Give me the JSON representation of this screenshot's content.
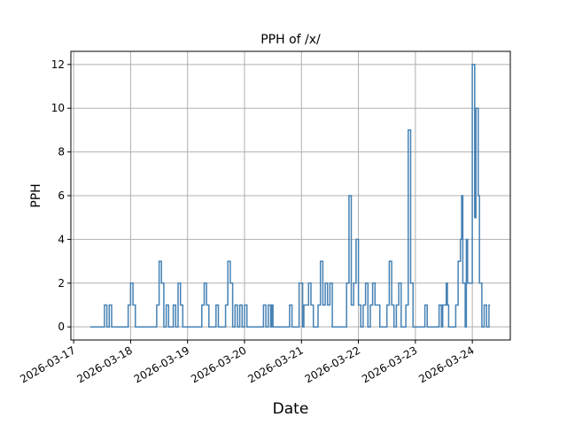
{
  "chart_data": {
    "type": "line",
    "step": "post",
    "title": "PPH of /x/",
    "xlabel": "Date",
    "ylabel": "PPH",
    "xlim": [
      "2026-03-16 22:50",
      "2026-03-24 16:00"
    ],
    "ylim": [
      -0.6,
      12.6
    ],
    "grid": true,
    "line_color": "#4682b4",
    "x_ticks": [
      "2026-03-17",
      "2026-03-18",
      "2026-03-19",
      "2026-03-20",
      "2026-03-21",
      "2026-03-22",
      "2026-03-23",
      "2026-03-24"
    ],
    "y_ticks": [
      0,
      2,
      4,
      6,
      8,
      10,
      12
    ],
    "points": [
      [
        "2026-03-17 07:00",
        0
      ],
      [
        "2026-03-17 13:00",
        1
      ],
      [
        "2026-03-17 14:00",
        0
      ],
      [
        "2026-03-17 15:00",
        1
      ],
      [
        "2026-03-17 16:00",
        0
      ],
      [
        "2026-03-17 23:00",
        1
      ],
      [
        "2026-03-18 00:00",
        2
      ],
      [
        "2026-03-18 01:00",
        1
      ],
      [
        "2026-03-18 02:00",
        0
      ],
      [
        "2026-03-18 11:00",
        1
      ],
      [
        "2026-03-18 12:00",
        3
      ],
      [
        "2026-03-18 13:00",
        2
      ],
      [
        "2026-03-18 14:00",
        0
      ],
      [
        "2026-03-18 15:00",
        1
      ],
      [
        "2026-03-18 16:00",
        0
      ],
      [
        "2026-03-18 18:00",
        1
      ],
      [
        "2026-03-18 19:00",
        0
      ],
      [
        "2026-03-18 20:00",
        2
      ],
      [
        "2026-03-18 21:00",
        1
      ],
      [
        "2026-03-18 22:00",
        0
      ],
      [
        "2026-03-19 06:00",
        1
      ],
      [
        "2026-03-19 07:00",
        2
      ],
      [
        "2026-03-19 08:00",
        1
      ],
      [
        "2026-03-19 09:00",
        0
      ],
      [
        "2026-03-19 12:00",
        1
      ],
      [
        "2026-03-19 13:00",
        0
      ],
      [
        "2026-03-19 16:00",
        1
      ],
      [
        "2026-03-19 17:00",
        3
      ],
      [
        "2026-03-19 18:00",
        2
      ],
      [
        "2026-03-19 19:00",
        0
      ],
      [
        "2026-03-19 20:00",
        1
      ],
      [
        "2026-03-19 21:00",
        0
      ],
      [
        "2026-03-19 22:00",
        1
      ],
      [
        "2026-03-19 23:00",
        0
      ],
      [
        "2026-03-20 00:00",
        1
      ],
      [
        "2026-03-20 01:00",
        0
      ],
      [
        "2026-03-20 08:00",
        1
      ],
      [
        "2026-03-20 09:00",
        0
      ],
      [
        "2026-03-20 10:00",
        1
      ],
      [
        "2026-03-20 11:00",
        0
      ],
      [
        "2026-03-20 11:30",
        1
      ],
      [
        "2026-03-20 12:00",
        0
      ],
      [
        "2026-03-20 19:00",
        1
      ],
      [
        "2026-03-20 20:00",
        0
      ],
      [
        "2026-03-20 23:00",
        2
      ],
      [
        "2026-03-21 00:30",
        0
      ],
      [
        "2026-03-21 01:00",
        1
      ],
      [
        "2026-03-21 03:00",
        2
      ],
      [
        "2026-03-21 04:00",
        1
      ],
      [
        "2026-03-21 05:00",
        0
      ],
      [
        "2026-03-21 07:00",
        1
      ],
      [
        "2026-03-21 08:00",
        3
      ],
      [
        "2026-03-21 09:00",
        1
      ],
      [
        "2026-03-21 10:00",
        2
      ],
      [
        "2026-03-21 11:00",
        1
      ],
      [
        "2026-03-21 12:00",
        2
      ],
      [
        "2026-03-21 13:00",
        0
      ],
      [
        "2026-03-21 19:00",
        2
      ],
      [
        "2026-03-21 20:00",
        6
      ],
      [
        "2026-03-21 21:00",
        1
      ],
      [
        "2026-03-21 22:00",
        2
      ],
      [
        "2026-03-21 23:00",
        4
      ],
      [
        "2026-03-22 00:00",
        1
      ],
      [
        "2026-03-22 01:00",
        0
      ],
      [
        "2026-03-22 02:00",
        1
      ],
      [
        "2026-03-22 03:00",
        2
      ],
      [
        "2026-03-22 04:00",
        0
      ],
      [
        "2026-03-22 05:00",
        1
      ],
      [
        "2026-03-22 06:00",
        2
      ],
      [
        "2026-03-22 07:00",
        1
      ],
      [
        "2026-03-22 09:00",
        0
      ],
      [
        "2026-03-22 12:00",
        1
      ],
      [
        "2026-03-22 13:00",
        3
      ],
      [
        "2026-03-22 14:00",
        1
      ],
      [
        "2026-03-22 15:00",
        0
      ],
      [
        "2026-03-22 16:00",
        1
      ],
      [
        "2026-03-22 17:00",
        2
      ],
      [
        "2026-03-22 18:00",
        0
      ],
      [
        "2026-03-22 20:00",
        1
      ],
      [
        "2026-03-22 21:00",
        9
      ],
      [
        "2026-03-22 22:00",
        2
      ],
      [
        "2026-03-22 23:00",
        0
      ],
      [
        "2026-03-23 04:00",
        1
      ],
      [
        "2026-03-23 05:00",
        0
      ],
      [
        "2026-03-23 10:00",
        1
      ],
      [
        "2026-03-23 11:00",
        0
      ],
      [
        "2026-03-23 11:30",
        1
      ],
      [
        "2026-03-23 13:00",
        2
      ],
      [
        "2026-03-23 13:30",
        1
      ],
      [
        "2026-03-23 14:00",
        0
      ],
      [
        "2026-03-23 17:00",
        1
      ],
      [
        "2026-03-23 18:00",
        3
      ],
      [
        "2026-03-23 19:00",
        4
      ],
      [
        "2026-03-23 19:30",
        6
      ],
      [
        "2026-03-23 20:00",
        2
      ],
      [
        "2026-03-23 21:00",
        0
      ],
      [
        "2026-03-23 21:30",
        4
      ],
      [
        "2026-03-23 22:00",
        2
      ],
      [
        "2026-03-24 00:00",
        12
      ],
      [
        "2026-03-24 01:00",
        5
      ],
      [
        "2026-03-24 01:30",
        10
      ],
      [
        "2026-03-24 02:30",
        6
      ],
      [
        "2026-03-24 03:00",
        2
      ],
      [
        "2026-03-24 04:00",
        0
      ],
      [
        "2026-03-24 05:00",
        1
      ],
      [
        "2026-03-24 06:00",
        0
      ],
      [
        "2026-03-24 07:00",
        1
      ],
      [
        "2026-03-24 07:30",
        1
      ]
    ]
  }
}
